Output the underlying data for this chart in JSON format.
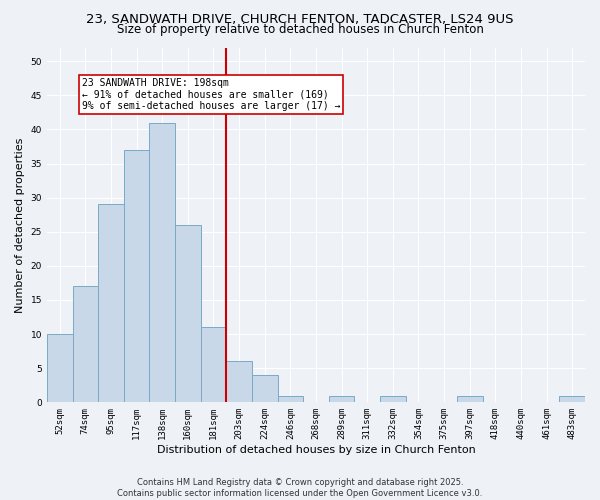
{
  "title": "23, SANDWATH DRIVE, CHURCH FENTON, TADCASTER, LS24 9US",
  "subtitle": "Size of property relative to detached houses in Church Fenton",
  "xlabel": "Distribution of detached houses by size in Church Fenton",
  "ylabel": "Number of detached properties",
  "bin_labels": [
    "52sqm",
    "74sqm",
    "95sqm",
    "117sqm",
    "138sqm",
    "160sqm",
    "181sqm",
    "203sqm",
    "224sqm",
    "246sqm",
    "268sqm",
    "289sqm",
    "311sqm",
    "332sqm",
    "354sqm",
    "375sqm",
    "397sqm",
    "418sqm",
    "440sqm",
    "461sqm",
    "483sqm"
  ],
  "bar_values": [
    10,
    17,
    29,
    37,
    41,
    26,
    11,
    6,
    4,
    1,
    0,
    1,
    0,
    1,
    0,
    0,
    1,
    0,
    0,
    0,
    1
  ],
  "bar_color": "#c8d8e8",
  "bar_edgecolor": "#7aaac8",
  "vline_x_idx": 7,
  "vline_color": "#cc0000",
  "annotation_text": "23 SANDWATH DRIVE: 198sqm\n← 91% of detached houses are smaller (169)\n9% of semi-detached houses are larger (17) →",
  "annotation_boxcolor": "white",
  "annotation_edgecolor": "#cc0000",
  "ylim": [
    0,
    52
  ],
  "yticks": [
    0,
    5,
    10,
    15,
    20,
    25,
    30,
    35,
    40,
    45,
    50
  ],
  "footer_line1": "Contains HM Land Registry data © Crown copyright and database right 2025.",
  "footer_line2": "Contains public sector information licensed under the Open Government Licence v3.0.",
  "bg_color": "#eef2f7",
  "grid_color": "#ffffff",
  "title_fontsize": 9.5,
  "subtitle_fontsize": 8.5,
  "tick_fontsize": 6.5,
  "ylabel_fontsize": 8,
  "xlabel_fontsize": 8,
  "footer_fontsize": 6,
  "annotation_fontsize": 7
}
